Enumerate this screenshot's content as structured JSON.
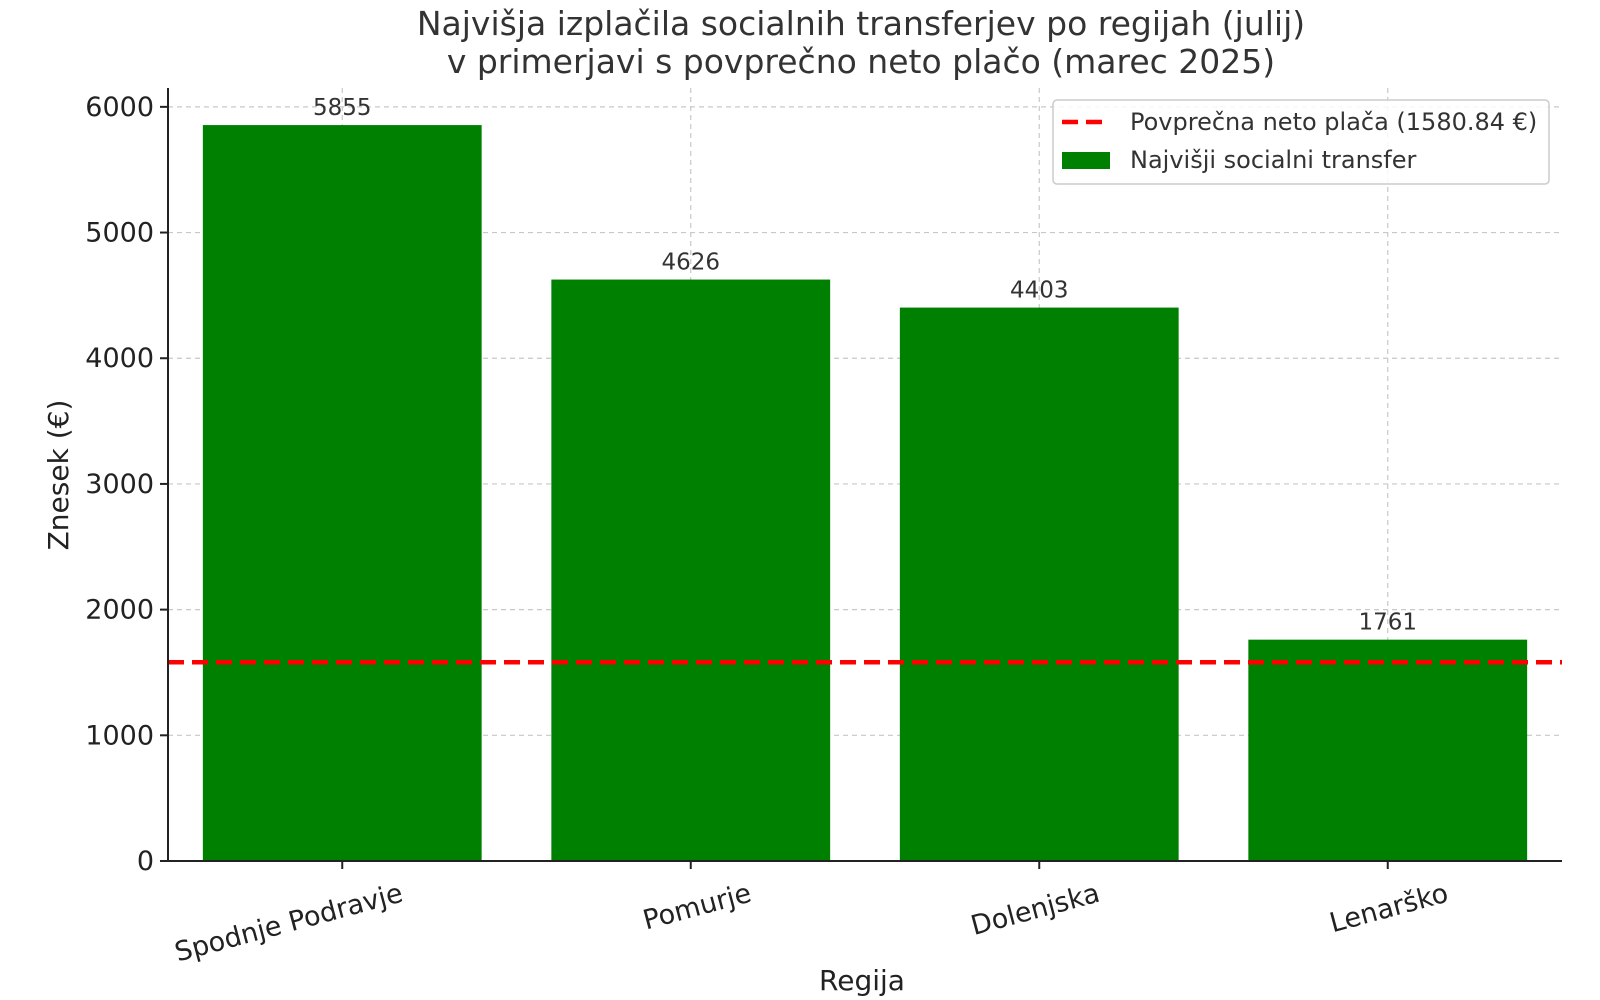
{
  "chart_data": {
    "type": "bar",
    "title": "Najvišja izplačila socialnih transferjev po regijah (julij)",
    "subtitle": "v primerjavi s povprečno neto plačo (marec 2025)",
    "xlabel": "Regija",
    "ylabel": "Znesek (€)",
    "categories": [
      "Spodnje Podravje",
      "Pomurje",
      "Dolenjska",
      "Lenarško"
    ],
    "series": [
      {
        "name": "Najvišji socialni transfer",
        "values": [
          5855,
          4626,
          4403,
          1761
        ],
        "color": "#008000"
      }
    ],
    "data_labels": [
      "5855",
      "4626",
      "4403",
      "1761"
    ],
    "reference_line": {
      "name": "Povprečna neto plača (1580.84 €)",
      "value": 1580.84,
      "color": "#ff0000",
      "style": "dashed"
    },
    "ylim": [
      0,
      6150
    ],
    "yticks": [
      0,
      1000,
      2000,
      3000,
      4000,
      5000,
      6000
    ],
    "ytick_labels": [
      "0",
      "1000",
      "2000",
      "3000",
      "4000",
      "5000",
      "6000"
    ],
    "grid": true,
    "legend_position": "top-right"
  }
}
